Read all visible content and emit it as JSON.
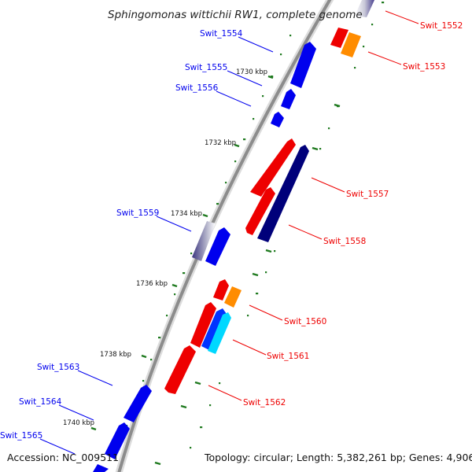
{
  "title": "Sphingomonas wittichii RW1, complete genome",
  "footer": {
    "accession": "Accession: NC_009511",
    "topology": "Topology: circular; Length: 5,382,261 bp; Genes: 4,906"
  },
  "colors": {
    "backbone": "#8c8c8c",
    "forward_gene": "#0000ee",
    "reverse_gene": "#ee0000",
    "dark_gene": "#00007a",
    "orange_gene": "#ff8c00",
    "cyan_gene": "#00d8ff",
    "purple_gene": "#4b4290",
    "dots": "#1f7a1f",
    "label_forward": "#0000ee",
    "label_reverse": "#ee0000"
  },
  "scale_labels": [
    "1730 kbp",
    "1732 kbp",
    "1734 kbp",
    "1736 kbp",
    "1738 kbp",
    "1740 kbp"
  ],
  "gene_labels": {
    "forward": [
      "Swit_1554",
      "Swit_1555",
      "Swit_1556",
      "Swit_1559",
      "Swit_1563",
      "Swit_1564",
      "Swit_1565"
    ],
    "reverse": [
      "Swit_1552",
      "Swit_1553",
      "Swit_1557",
      "Swit_1558",
      "Swit_1560",
      "Swit_1561",
      "Swit_1562"
    ]
  }
}
